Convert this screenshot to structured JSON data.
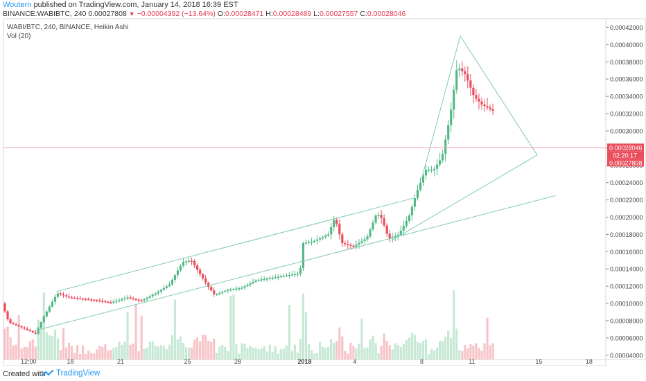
{
  "header": {
    "author": "Woutern",
    "published_text": "published on TradingView.com, January 14, 2018 16:39 EST",
    "symbol_text": "BINANCE:WABIBTC, 240",
    "last": "0.00027808",
    "change": "−0.00004392 (−13.64%)",
    "ohlc": [
      {
        "label": "O:",
        "value": "0.00028471"
      },
      {
        "label": "H:",
        "value": "0.00028489"
      },
      {
        "label": "L:",
        "value": "0.00027557"
      },
      {
        "label": "C:",
        "value": "0.00028046"
      }
    ]
  },
  "legend": {
    "title": "WABI/BTC, 240, BINANCE, Heikin Ashi",
    "vol": "Vol (20)"
  },
  "chart_data": {
    "type": "candlestick",
    "style": "Heikin Ashi",
    "ylim": [
      3.5e-05,
      0.00043
    ],
    "x_range_days": [
      -1.0,
      28.25
    ],
    "y_ticks": [
      "0.00004000",
      "0.00006000",
      "0.00008000",
      "0.00010000",
      "0.00012000",
      "0.00014000",
      "0.00016000",
      "0.00018000",
      "0.00020000",
      "0.00022000",
      "0.00024000",
      "0.00026000",
      "0.00028000",
      "0.00030000",
      "0.00032000",
      "0.00034000",
      "0.00036000",
      "0.00038000",
      "0.00040000",
      "0.00042000"
    ],
    "x_ticks": [
      {
        "label": "12:00",
        "day": 0.5,
        "bold": false
      },
      {
        "label": "18",
        "day": 3,
        "bold": false
      },
      {
        "label": "21",
        "day": 6,
        "bold": false
      },
      {
        "label": "25",
        "day": 10,
        "bold": false
      },
      {
        "label": "28",
        "day": 13,
        "bold": false
      },
      {
        "label": "2018",
        "day": 17,
        "bold": true
      },
      {
        "label": "4",
        "day": 20,
        "bold": false
      },
      {
        "label": "8",
        "day": 24,
        "bold": false
      },
      {
        "label": "11",
        "day": 27,
        "bold": false
      },
      {
        "label": "15",
        "day": 31,
        "bold": false
      },
      {
        "label": "18",
        "day": 34,
        "bold": false
      }
    ],
    "price_labels": {
      "current": "0.00028046",
      "countdown": "02:20:17",
      "last": "0.00027808",
      "current_value": 0.00028046,
      "last_value": 0.00027808
    },
    "colors": {
      "up": "#53b987",
      "down": "#eb4d5c",
      "up_vol": "#c6e8d5",
      "down_vol": "#f7c4c9",
      "trendline": "#7fcab0",
      "price_line": "#f29ba1"
    },
    "keypoints": [
      {
        "day": -1.0,
        "price": 0.0001
      },
      {
        "day": -0.6,
        "price": 7.8e-05
      },
      {
        "day": 0.2,
        "price": 7.2e-05
      },
      {
        "day": 1.0,
        "price": 6.5e-05
      },
      {
        "day": 1.5,
        "price": 8.5e-05
      },
      {
        "day": 2.3,
        "price": 0.000112
      },
      {
        "day": 3.0,
        "price": 0.000107
      },
      {
        "day": 4.5,
        "price": 0.000104
      },
      {
        "day": 5.5,
        "price": 0.000101
      },
      {
        "day": 6.5,
        "price": 0.000107
      },
      {
        "day": 7.3,
        "price": 0.000103
      },
      {
        "day": 8.2,
        "price": 0.000112
      },
      {
        "day": 9.0,
        "price": 0.000122
      },
      {
        "day": 9.8,
        "price": 0.000148
      },
      {
        "day": 10.3,
        "price": 0.00015
      },
      {
        "day": 11.3,
        "price": 0.00012
      },
      {
        "day": 11.7,
        "price": 0.00011
      },
      {
        "day": 12.5,
        "price": 0.000116
      },
      {
        "day": 13.3,
        "price": 0.000118
      },
      {
        "day": 14.2,
        "price": 0.000127
      },
      {
        "day": 15.2,
        "price": 0.00013
      },
      {
        "day": 16.8,
        "price": 0.000135
      },
      {
        "day": 17.0,
        "price": 0.00017
      },
      {
        "day": 17.6,
        "price": 0.000172
      },
      {
        "day": 18.5,
        "price": 0.00018
      },
      {
        "day": 18.9,
        "price": 0.0002
      },
      {
        "day": 19.3,
        "price": 0.00017
      },
      {
        "day": 20.0,
        "price": 0.000166
      },
      {
        "day": 20.8,
        "price": 0.000176
      },
      {
        "day": 21.4,
        "price": 0.000205
      },
      {
        "day": 21.7,
        "price": 0.000198
      },
      {
        "day": 22.1,
        "price": 0.000175
      },
      {
        "day": 22.7,
        "price": 0.00018
      },
      {
        "day": 23.3,
        "price": 0.0002
      },
      {
        "day": 23.8,
        "price": 0.00023
      },
      {
        "day": 24.3,
        "price": 0.000255
      },
      {
        "day": 24.8,
        "price": 0.000255
      },
      {
        "day": 25.3,
        "price": 0.00027
      },
      {
        "day": 25.8,
        "price": 0.00032
      },
      {
        "day": 26.2,
        "price": 0.000375
      },
      {
        "day": 26.7,
        "price": 0.000365
      },
      {
        "day": 27.2,
        "price": 0.00034
      },
      {
        "day": 27.7,
        "price": 0.00033
      },
      {
        "day": 28.2,
        "price": 0.000325
      },
      {
        "day": 28.6,
        "price": 0.00032
      },
      {
        "day": 29.0,
        "price": 0.000285
      },
      {
        "day": 29.5,
        "price": 0.000278
      }
    ],
    "trendlines": [
      {
        "from": [
          2.2,
          0.000114
        ],
        "to": [
          23.5,
          0.000222
        ]
      },
      {
        "from": [
          0.8,
          6.8e-05
        ],
        "to": [
          32.0,
          0.000225
        ]
      },
      {
        "from": [
          24.0,
          0.000245
        ],
        "to": [
          26.3,
          0.00041
        ]
      },
      {
        "from": [
          26.3,
          0.00041
        ],
        "to": [
          30.9,
          0.000272
        ]
      },
      {
        "from": [
          22.2,
          0.000173
        ],
        "to": [
          30.9,
          0.000272
        ]
      }
    ]
  },
  "footer": {
    "created_with": "Created with",
    "brand": "TradingView"
  }
}
